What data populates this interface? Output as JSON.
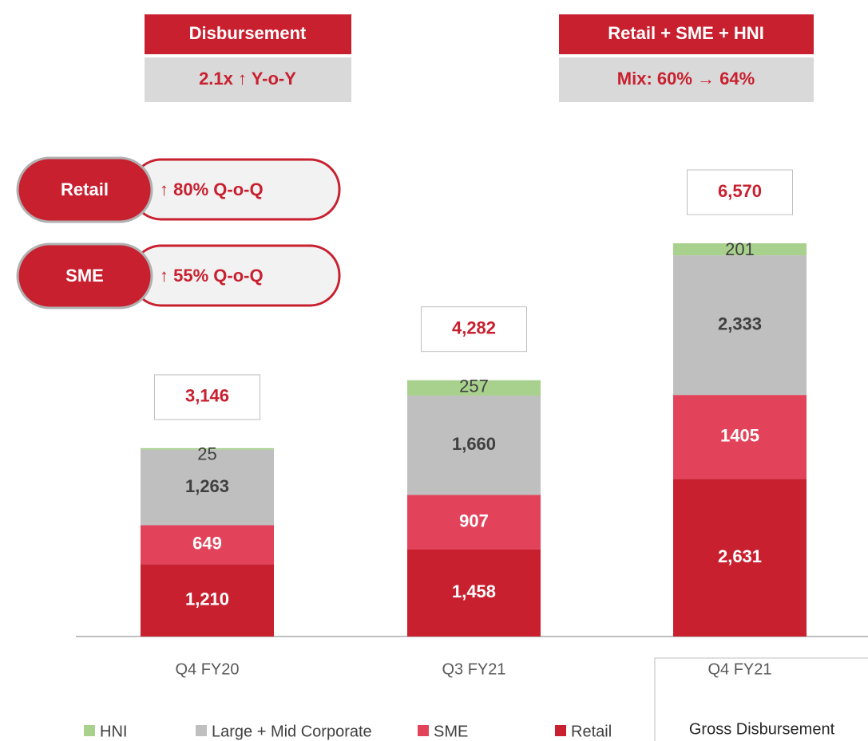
{
  "chart_data": {
    "type": "bar",
    "stacked": true,
    "categories": [
      "Q4 FY20",
      "Q3 FY21",
      "Q4 FY21"
    ],
    "series": [
      {
        "name": "HNI",
        "color": "#a9d18e",
        "label_color": "#404040",
        "label_bold": false,
        "values": [
          25,
          257,
          201
        ]
      },
      {
        "name": "Large + Mid Corporate",
        "color": "#bfbfbf",
        "label_color": "#404040",
        "label_bold": true,
        "values": [
          1263,
          1660,
          2333
        ],
        "value_labels": [
          "1,263",
          "1,660",
          "2,333"
        ]
      },
      {
        "name": "SME",
        "color": "#e2435a",
        "label_color": "#ffffff",
        "label_bold": true,
        "values": [
          649,
          907,
          1405
        ]
      },
      {
        "name": "Retail",
        "color": "#c8202f",
        "label_color": "#ffffff",
        "label_bold": true,
        "values": [
          1210,
          1458,
          2631
        ],
        "value_labels": [
          "1,210",
          "1,458",
          "2,631"
        ]
      }
    ],
    "totals": [
      3146,
      4282,
      6570
    ],
    "total_labels": [
      "3,146",
      "4,282",
      "6,570"
    ],
    "ylim": [
      0,
      6570
    ],
    "headers": [
      {
        "title": "Disbursement",
        "detail": "2.1x ↑ Y-o-Y"
      },
      {
        "title": "Retail + SME + HNI",
        "detail": "Mix:  60% → 64%"
      }
    ],
    "pills": [
      {
        "label": "Retail",
        "text": "↑  80% Q-o-Q"
      },
      {
        "label": "SME",
        "text": "↑  55% Q-o-Q"
      }
    ],
    "note": "Gross Disbursement"
  }
}
